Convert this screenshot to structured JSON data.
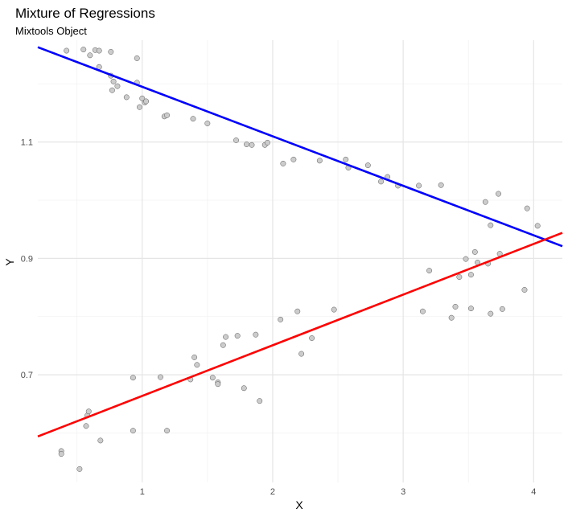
{
  "chart_data": {
    "type": "scatter",
    "title": "Mixture of Regressions",
    "subtitle": "Mixtools Object",
    "xlabel": "X",
    "ylabel": "Y",
    "xlim": [
      0.2,
      4.22
    ],
    "ylim": [
      0.515,
      1.275
    ],
    "x_ticks": [
      1,
      2,
      3,
      4
    ],
    "x_tick_labels": [
      "1",
      "2",
      "3",
      "4"
    ],
    "y_ticks": [
      0.7,
      0.9,
      1.1
    ],
    "y_tick_labels": [
      "0.7",
      "0.9",
      "1.1"
    ],
    "x_minor": [
      0.5,
      1.5,
      2.5,
      3.5
    ],
    "y_minor": [
      0.6,
      0.8,
      1.0,
      1.2
    ],
    "grid": true,
    "point_color": "#cccccc",
    "point_stroke": "#555555",
    "points": [
      [
        0.38,
        0.569
      ],
      [
        0.38,
        0.564
      ],
      [
        0.52,
        0.538
      ],
      [
        0.57,
        0.612
      ],
      [
        0.58,
        0.63
      ],
      [
        0.59,
        0.637
      ],
      [
        0.68,
        0.587
      ],
      [
        0.93,
        0.695
      ],
      [
        0.93,
        0.604
      ],
      [
        1.14,
        0.696
      ],
      [
        1.19,
        0.604
      ],
      [
        1.37,
        0.692
      ],
      [
        1.4,
        0.73
      ],
      [
        1.42,
        0.717
      ],
      [
        1.54,
        0.695
      ],
      [
        1.58,
        0.687
      ],
      [
        1.58,
        0.684
      ],
      [
        1.62,
        0.751
      ],
      [
        1.64,
        0.765
      ],
      [
        1.73,
        0.767
      ],
      [
        1.78,
        0.677
      ],
      [
        1.87,
        0.769
      ],
      [
        1.9,
        0.655
      ],
      [
        2.06,
        0.795
      ],
      [
        2.19,
        0.809
      ],
      [
        2.22,
        0.736
      ],
      [
        2.3,
        0.763
      ],
      [
        2.47,
        0.812
      ],
      [
        3.15,
        0.809
      ],
      [
        3.2,
        0.879
      ],
      [
        3.37,
        0.798
      ],
      [
        3.4,
        0.817
      ],
      [
        3.43,
        0.868
      ],
      [
        3.48,
        0.899
      ],
      [
        3.52,
        0.872
      ],
      [
        3.52,
        0.814
      ],
      [
        3.55,
        0.911
      ],
      [
        3.57,
        0.893
      ],
      [
        3.65,
        0.891
      ],
      [
        3.67,
        0.805
      ],
      [
        3.74,
        0.908
      ],
      [
        3.76,
        0.813
      ],
      [
        3.93,
        0.846
      ],
      [
        0.42,
        1.257
      ],
      [
        0.55,
        1.259
      ],
      [
        0.6,
        1.249
      ],
      [
        0.64,
        1.258
      ],
      [
        0.67,
        1.257
      ],
      [
        0.76,
        1.255
      ],
      [
        0.67,
        1.229
      ],
      [
        0.76,
        1.214
      ],
      [
        0.78,
        1.204
      ],
      [
        0.81,
        1.196
      ],
      [
        0.77,
        1.189
      ],
      [
        0.88,
        1.177
      ],
      [
        0.96,
        1.244
      ],
      [
        0.98,
        1.16
      ],
      [
        1.0,
        1.175
      ],
      [
        1.02,
        1.168
      ],
      [
        1.03,
        1.17
      ],
      [
        0.96,
        1.202
      ],
      [
        1.17,
        1.144
      ],
      [
        1.19,
        1.146
      ],
      [
        1.39,
        1.14
      ],
      [
        1.5,
        1.132
      ],
      [
        1.72,
        1.103
      ],
      [
        1.8,
        1.096
      ],
      [
        1.84,
        1.095
      ],
      [
        1.94,
        1.095
      ],
      [
        1.96,
        1.099
      ],
      [
        2.08,
        1.063
      ],
      [
        2.16,
        1.07
      ],
      [
        2.36,
        1.068
      ],
      [
        2.56,
        1.07
      ],
      [
        2.58,
        1.056
      ],
      [
        2.73,
        1.06
      ],
      [
        2.83,
        1.032
      ],
      [
        2.88,
        1.04
      ],
      [
        2.96,
        1.025
      ],
      [
        3.12,
        1.025
      ],
      [
        3.29,
        1.026
      ],
      [
        3.63,
        0.997
      ],
      [
        3.67,
        0.957
      ],
      [
        3.73,
        1.011
      ],
      [
        3.95,
        0.986
      ],
      [
        4.03,
        0.956
      ]
    ],
    "lines": [
      {
        "color": "#0000ff",
        "x": [
          0.2,
          4.22
        ],
        "y": [
          1.263,
          0.921
        ]
      },
      {
        "color": "#ff0000",
        "x": [
          0.2,
          4.22
        ],
        "y": [
          0.594,
          0.944
        ]
      }
    ]
  }
}
